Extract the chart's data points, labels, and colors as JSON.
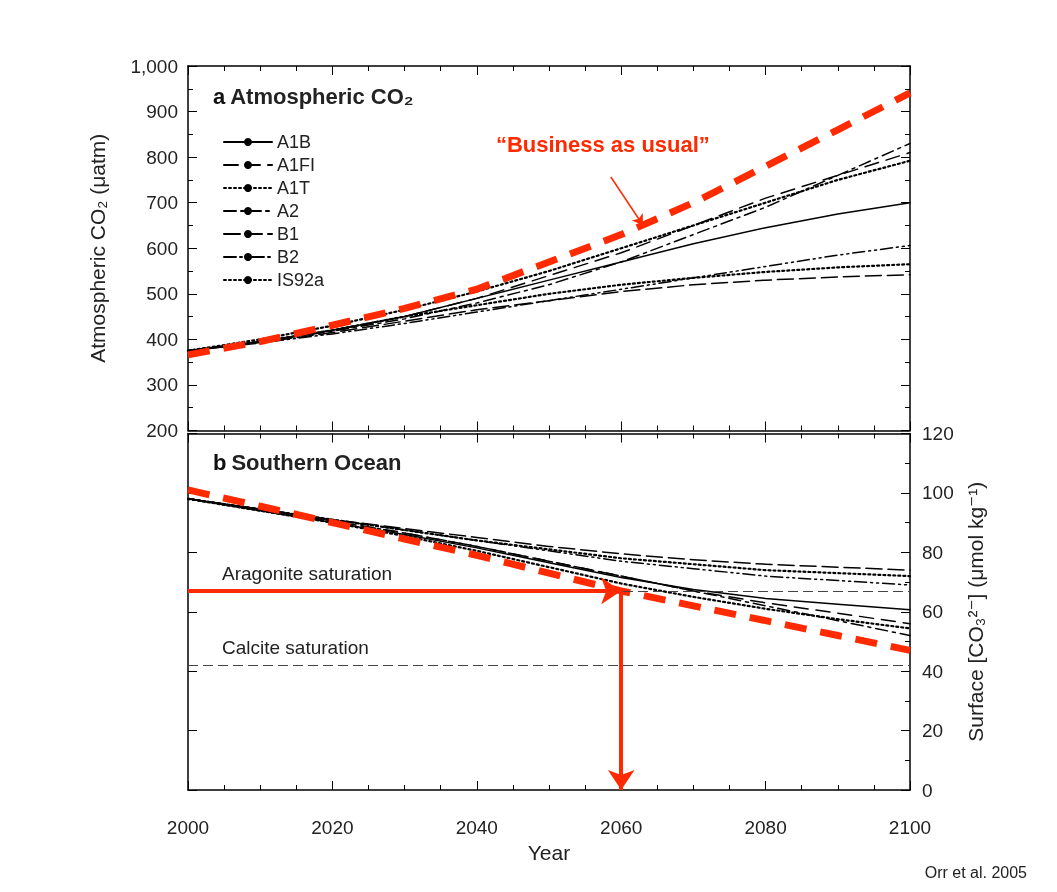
{
  "chart_data": [
    {
      "type": "line",
      "title": "a Atmospheric CO₂",
      "ylabel": "Atmospheric CO₂ (μatm)",
      "x": [
        2000,
        2010,
        2020,
        2030,
        2040,
        2050,
        2060,
        2070,
        2080,
        2090,
        2100
      ],
      "xlim": [
        2000,
        2100
      ],
      "xticks": [
        2000,
        2020,
        2040,
        2060,
        2080,
        2100
      ],
      "ylim": [
        200,
        1000
      ],
      "yticks": [
        200,
        300,
        400,
        500,
        600,
        700,
        800,
        900,
        {
          "value": 1000,
          "label": "1,000"
        }
      ],
      "tick_labels": "y",
      "legend": "top left",
      "series": [
        {
          "name": "A1B",
          "color": "#000000",
          "line_style": "solid",
          "values": [
            375,
            395,
            420,
            450,
            490,
            530,
            570,
            610,
            645,
            675,
            700
          ]
        },
        {
          "name": "A1FI",
          "color": "#000000",
          "line_style": "dashed",
          "values": [
            375,
            395,
            420,
            450,
            490,
            540,
            590,
            650,
            710,
            760,
            810
          ]
        },
        {
          "name": "A1T",
          "color": "#000000",
          "line_style": "dotted",
          "values": [
            375,
            395,
            420,
            450,
            475,
            500,
            520,
            535,
            548,
            558,
            565
          ]
        },
        {
          "name": "A2",
          "color": "#000000",
          "line_style": "dashed",
          "values": [
            375,
            395,
            418,
            445,
            480,
            520,
            570,
            630,
            690,
            760,
            830
          ]
        },
        {
          "name": "B1",
          "color": "#000000",
          "line_style": "dashed",
          "values": [
            375,
            393,
            415,
            440,
            465,
            485,
            505,
            520,
            530,
            537,
            542
          ]
        },
        {
          "name": "B2",
          "color": "#000000",
          "line_style": "dashed",
          "values": [
            375,
            392,
            412,
            435,
            460,
            485,
            510,
            535,
            560,
            585,
            606
          ]
        },
        {
          "name": "IS92a",
          "color": "#000000",
          "line_style": "dotted",
          "values": [
            375,
            400,
            430,
            465,
            505,
            550,
            600,
            650,
            700,
            750,
            792
          ]
        },
        {
          "color": "#ff2a00",
          "line_style": "dashed",
          "values": [
            366,
            395,
            431,
            468,
            510,
            570,
            630,
            700,
            780,
            860,
            941
          ]
        }
      ],
      "annotations": [
        {
          "text": "“Business as usual”",
          "x": 2063,
          "y": 651
        }
      ]
    },
    {
      "type": "line",
      "title": "b Southern Ocean",
      "xlabel": "Year",
      "y2label": "Surface [CO₃²⁻] (μmol kg⁻¹)",
      "x": [
        2000,
        2010,
        2020,
        2030,
        2040,
        2050,
        2060,
        2070,
        2080,
        2090,
        2100
      ],
      "xlim": [
        2000,
        2100
      ],
      "xticks": [
        2000,
        2020,
        2040,
        2060,
        2080,
        2100
      ],
      "y2lim": [
        0,
        120
      ],
      "y2ticks": [
        0,
        20,
        40,
        60,
        80,
        100,
        120
      ],
      "series": [
        {
          "axis": "y2",
          "color": "#000000",
          "line_style": "solid",
          "values": [
            98,
            94,
            90,
            86,
            81.5,
            76.5,
            71.5,
            67.5,
            64.5,
            62.5,
            60.7
          ]
        },
        {
          "axis": "y2",
          "color": "#000000",
          "line_style": "dashed",
          "values": [
            98,
            94.5,
            90.5,
            86.5,
            82,
            77,
            72,
            67,
            63,
            59.5,
            56
          ]
        },
        {
          "axis": "y2",
          "color": "#000000",
          "line_style": "dotted",
          "values": [
            98,
            94.5,
            91,
            87.5,
            84,
            81,
            78,
            76,
            74,
            73,
            72
          ]
        },
        {
          "axis": "y2",
          "color": "#000000",
          "line_style": "dashed",
          "values": [
            98,
            94.5,
            90.5,
            86.5,
            82,
            77,
            72,
            67,
            62,
            57,
            52
          ]
        },
        {
          "axis": "y2",
          "color": "#000000",
          "line_style": "dashed",
          "values": [
            98,
            94.5,
            91,
            88,
            85,
            82,
            79.5,
            77.5,
            76,
            75,
            74
          ]
        },
        {
          "axis": "y2",
          "color": "#000000",
          "line_style": "dashed",
          "values": [
            98,
            94.5,
            91,
            87.5,
            84,
            80.5,
            77,
            74.5,
            72,
            70.5,
            69
          ]
        },
        {
          "axis": "y2",
          "color": "#000000",
          "line_style": "dotted",
          "values": [
            98,
            94,
            90,
            85.5,
            80.5,
            75,
            69.5,
            65,
            61,
            57.5,
            54.4
          ]
        },
        {
          "axis": "y2",
          "color": "#ff2a00",
          "line_style": "dashed",
          "values": [
            101,
            95.5,
            90,
            84.5,
            79,
            73,
            67,
            62,
            57,
            52,
            47
          ]
        }
      ],
      "ref_lines": [
        {
          "axis": "y2",
          "value": 67,
          "label": "Aragonite saturation",
          "line_style": "dashed",
          "color": "#444444"
        },
        {
          "axis": "y2",
          "value": 42,
          "label": "Calcite saturation",
          "line_style": "dashed",
          "color": "#444444"
        }
      ],
      "annotations": [
        "Orr et al. 2005"
      ]
    }
  ]
}
